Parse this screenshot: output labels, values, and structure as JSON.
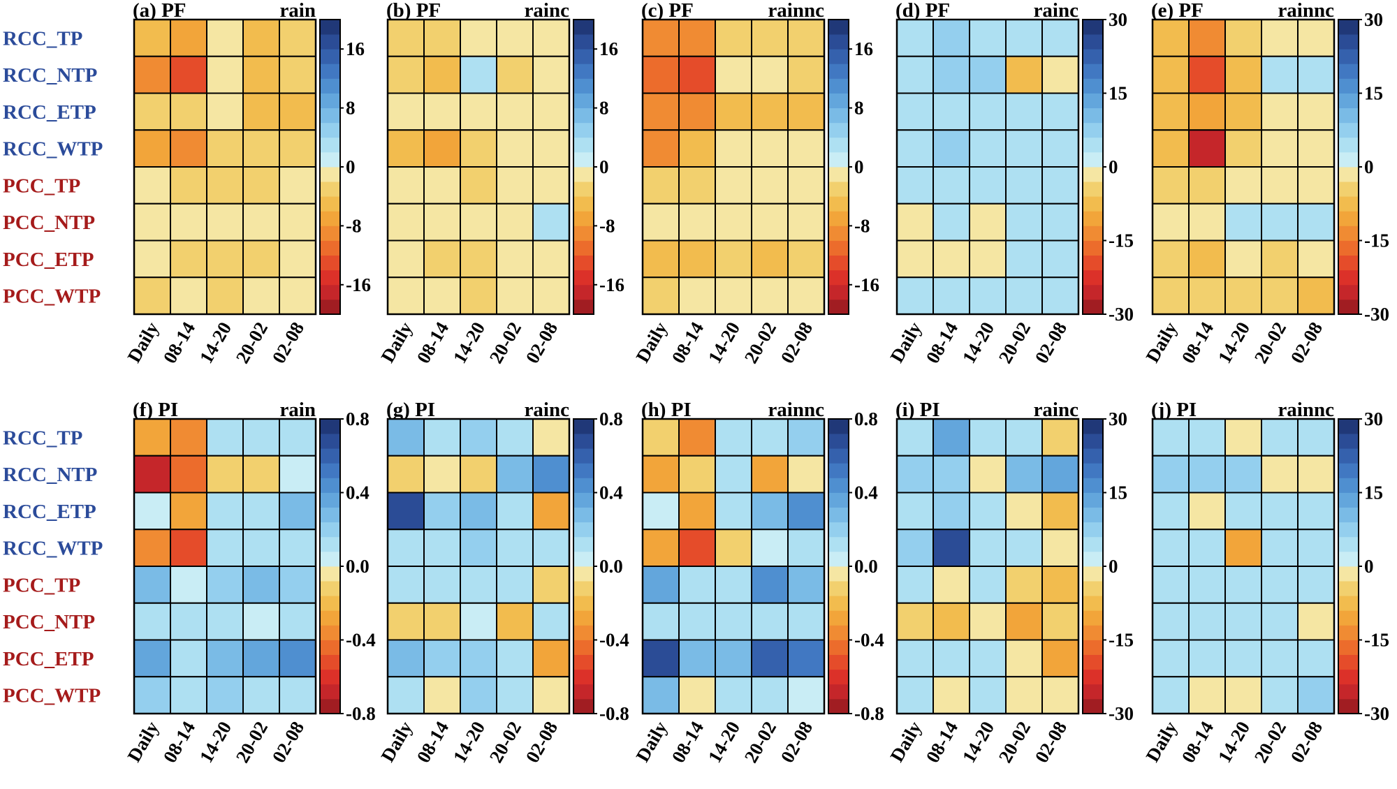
{
  "chart_data": {
    "type": "heatmap",
    "rows": [
      "RCC_TP",
      "RCC_NTP",
      "RCC_ETP",
      "RCC_WTP",
      "PCC_TP",
      "PCC_NTP",
      "PCC_ETP",
      "PCC_WTP"
    ],
    "row_colors": [
      "#2b4b9a",
      "#2b4b9a",
      "#2b4b9a",
      "#2b4b9a",
      "#a51b1b",
      "#a51b1b",
      "#a51b1b",
      "#a51b1b"
    ],
    "columns": [
      "Daily",
      "08-14",
      "14-20",
      "20-02",
      "02-08"
    ],
    "colorbars": {
      "pf_small": {
        "range": [
          -20,
          20
        ],
        "ticks": [
          "16",
          "8",
          "0",
          "-8",
          "-16"
        ],
        "tick_values": [
          16,
          8,
          0,
          -8,
          -16
        ]
      },
      "pi_small": {
        "range": [
          -0.8,
          0.8
        ],
        "ticks": [
          "0.8",
          "0.4",
          "0.0",
          "-0.4",
          "-0.8"
        ],
        "tick_values": [
          0.8,
          0.4,
          0.0,
          -0.4,
          -0.8
        ]
      },
      "large": {
        "range": [
          -30,
          30
        ],
        "ticks": [
          "30",
          "15",
          "0",
          "-15",
          "-30"
        ],
        "tick_values": [
          30,
          15,
          0,
          -15,
          -30
        ]
      }
    },
    "panels": [
      {
        "label": "(a) PF",
        "variable": "rain",
        "colorbar": "pf_small",
        "values": [
          [
            -6,
            -7,
            -1,
            -5,
            -4
          ],
          [
            -9,
            -13,
            -1,
            -5,
            -4
          ],
          [
            -4,
            -3,
            -1,
            -5,
            -5
          ],
          [
            -7,
            -9,
            -3,
            -3,
            -3
          ],
          [
            -1,
            -3,
            -3,
            -3,
            -1
          ],
          [
            -1,
            -2,
            -1,
            -1,
            -1
          ],
          [
            -1,
            -3,
            -3,
            -3,
            -1
          ],
          [
            -4,
            -1,
            -3,
            -2,
            -1
          ]
        ]
      },
      {
        "label": "(b) PF",
        "variable": "rainc",
        "colorbar": "pf_small",
        "values": [
          [
            -3,
            -3,
            -1,
            -1,
            -1
          ],
          [
            -3,
            -5,
            2,
            -3,
            -1
          ],
          [
            -1,
            -1,
            -1,
            -1,
            -1
          ],
          [
            -5,
            -7,
            -3,
            -1,
            -1
          ],
          [
            -1,
            -1,
            -3,
            -1,
            -1
          ],
          [
            -1,
            -1,
            -1,
            -1,
            2
          ],
          [
            -1,
            -3,
            -3,
            -1,
            -1
          ],
          [
            -1,
            -1,
            -3,
            -1,
            -1
          ]
        ]
      },
      {
        "label": "(c) PF",
        "variable": "rainnc",
        "colorbar": "pf_small",
        "values": [
          [
            -9,
            -9,
            -3,
            -3,
            -3
          ],
          [
            -11,
            -13,
            -1,
            -1,
            -3
          ],
          [
            -9,
            -9,
            -5,
            -5,
            -5
          ],
          [
            -9,
            -5,
            -1,
            -1,
            -1
          ],
          [
            -3,
            -3,
            -1,
            -1,
            -1
          ],
          [
            -1,
            -1,
            -1,
            -1,
            -1
          ],
          [
            -5,
            -5,
            -3,
            -5,
            -3
          ],
          [
            -3,
            -1,
            -1,
            -1,
            -1
          ]
        ]
      },
      {
        "label": "(d) PF",
        "variable": "rainc",
        "colorbar": "large",
        "values": [
          [
            3,
            6,
            3,
            3,
            3
          ],
          [
            3,
            6,
            6,
            -7,
            -3
          ],
          [
            3,
            3,
            3,
            3,
            3
          ],
          [
            3,
            6,
            3,
            3,
            3
          ],
          [
            3,
            3,
            3,
            3,
            3
          ],
          [
            -1,
            3,
            -1,
            3,
            3
          ],
          [
            -1,
            -1,
            -1,
            3,
            3
          ],
          [
            3,
            3,
            3,
            3,
            3
          ]
        ]
      },
      {
        "label": "(e) PF",
        "variable": "rainnc",
        "colorbar": "large",
        "values": [
          [
            -9,
            -15,
            -5,
            -3,
            -1
          ],
          [
            -9,
            -21,
            -7,
            3,
            3
          ],
          [
            -7,
            -11,
            -7,
            -3,
            -3
          ],
          [
            -9,
            -27,
            -5,
            -3,
            -3
          ],
          [
            -5,
            -5,
            -3,
            -3,
            -3
          ],
          [
            -3,
            -3,
            3,
            3,
            3
          ],
          [
            -5,
            -7,
            -3,
            -5,
            -3
          ],
          [
            -5,
            -5,
            -5,
            -5,
            -7
          ]
        ]
      },
      {
        "label": "(f) PI",
        "variable": "rain",
        "colorbar": "pi_small",
        "values": [
          [
            -0.25,
            -0.4,
            0.15,
            0.1,
            0.15
          ],
          [
            -0.65,
            -0.45,
            -0.15,
            -0.15,
            0.05
          ],
          [
            0.05,
            -0.3,
            0.15,
            0.15,
            0.3
          ],
          [
            -0.4,
            -0.55,
            0.15,
            0.1,
            0.1
          ],
          [
            0.25,
            0.05,
            0.2,
            0.25,
            0.2
          ],
          [
            0.1,
            0.1,
            0.1,
            0.05,
            0.1
          ],
          [
            0.35,
            0.1,
            0.25,
            0.35,
            0.45
          ],
          [
            0.2,
            0.1,
            0.2,
            0.15,
            0.1
          ]
        ]
      },
      {
        "label": "(g) PI",
        "variable": "rainc",
        "colorbar": "pi_small",
        "values": [
          [
            0.3,
            0.1,
            0.2,
            0.1,
            -0.05
          ],
          [
            -0.15,
            -0.05,
            -0.15,
            0.3,
            0.4
          ],
          [
            0.65,
            0.2,
            0.3,
            0.1,
            -0.3
          ],
          [
            0.1,
            0.1,
            0.2,
            0.1,
            0.1
          ],
          [
            0.15,
            0.1,
            0.1,
            0.1,
            -0.15
          ],
          [
            -0.15,
            -0.15,
            0.05,
            -0.2,
            0.1
          ],
          [
            0.25,
            0.2,
            0.2,
            0.1,
            -0.3
          ],
          [
            0.15,
            -0.05,
            0.2,
            0.1,
            -0.05
          ]
        ]
      },
      {
        "label": "(h) PI",
        "variable": "rainnc",
        "colorbar": "pi_small",
        "values": [
          [
            -0.15,
            -0.4,
            0.1,
            0.15,
            0.2
          ],
          [
            -0.25,
            -0.15,
            0.15,
            -0.25,
            -0.05
          ],
          [
            0.05,
            -0.3,
            0.1,
            0.3,
            0.4
          ],
          [
            -0.3,
            -0.55,
            -0.15,
            0.05,
            0.15
          ],
          [
            0.35,
            0.1,
            0.15,
            0.4,
            0.3
          ],
          [
            0.15,
            0.15,
            0.15,
            0.1,
            0.15
          ],
          [
            0.7,
            0.25,
            0.3,
            0.6,
            0.5
          ],
          [
            0.25,
            -0.05,
            0.1,
            0.1,
            0.05
          ]
        ]
      },
      {
        "label": "(i) PI",
        "variable": "rainc",
        "colorbar": "large",
        "values": [
          [
            3,
            12,
            3,
            3,
            -5
          ],
          [
            6,
            6,
            -1,
            9,
            12
          ],
          [
            3,
            6,
            3,
            -1,
            -9
          ],
          [
            6,
            24,
            3,
            3,
            -1
          ],
          [
            3,
            -1,
            3,
            -5,
            -9
          ],
          [
            -5,
            -9,
            -1,
            -11,
            -5
          ],
          [
            3,
            3,
            3,
            -1,
            -11
          ],
          [
            3,
            -1,
            3,
            -3,
            -3
          ]
        ]
      },
      {
        "label": "(j) PI",
        "variable": "rainnc",
        "colorbar": "large",
        "values": [
          [
            3,
            3,
            -1,
            3,
            3
          ],
          [
            6,
            6,
            6,
            -1,
            -1
          ],
          [
            3,
            -1,
            3,
            3,
            3
          ],
          [
            3,
            3,
            -11,
            3,
            3
          ],
          [
            3,
            3,
            3,
            3,
            3
          ],
          [
            3,
            3,
            3,
            3,
            -1
          ],
          [
            3,
            3,
            3,
            3,
            3
          ],
          [
            3,
            -3,
            -3,
            3,
            6
          ]
        ]
      }
    ]
  }
}
